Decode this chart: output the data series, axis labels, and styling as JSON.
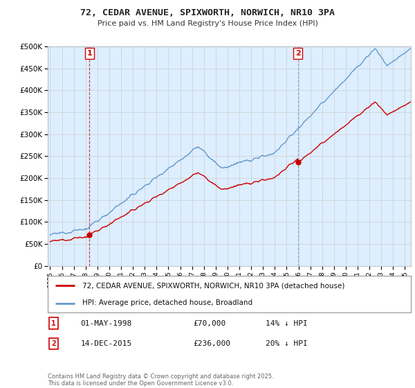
{
  "title": "72, CEDAR AVENUE, SPIXWORTH, NORWICH, NR10 3PA",
  "subtitle": "Price paid vs. HM Land Registry's House Price Index (HPI)",
  "hpi_label": "HPI: Average price, detached house, Broadland",
  "property_label": "72, CEDAR AVENUE, SPIXWORTH, NORWICH, NR10 3PA (detached house)",
  "copyright_text": "Contains HM Land Registry data © Crown copyright and database right 2025.\nThis data is licensed under the Open Government Licence v3.0.",
  "sale1": {
    "num": "1",
    "date": "01-MAY-1998",
    "price": "£70,000",
    "hpi": "14% ↓ HPI",
    "x": 1998.33
  },
  "sale2": {
    "num": "2",
    "date": "14-DEC-2015",
    "price": "£236,000",
    "hpi": "20% ↓ HPI",
    "x": 2015.95
  },
  "sale1_y": 70000,
  "sale2_y": 236000,
  "property_color": "#cc0000",
  "hpi_color": "#6699cc",
  "bg_fill_color": "#ddeeff",
  "background_color": "#ffffff",
  "grid_color": "#cccccc",
  "ylim": [
    0,
    500000
  ],
  "xlim_start": 1994.8,
  "xlim_end": 2025.5
}
